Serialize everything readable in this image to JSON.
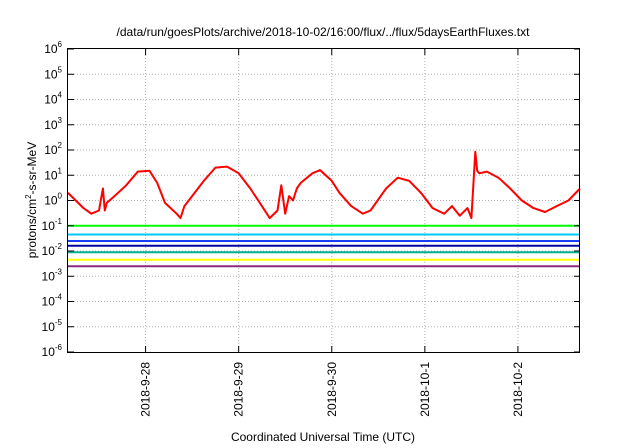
{
  "chart_data": {
    "type": "line",
    "title": "/data/run/goesPlots/archive/2018-10-02/16:00/flux/../flux/5daysEarthFluxes.txt",
    "xlabel": "Coordinated Universal Time (UTC)",
    "ylabel": "protons/cm2-s-sr-MeV",
    "ylabel_parts": {
      "base": "protons/cm",
      "sup": "2",
      "rest": "-s-sr-MeV"
    },
    "y_scale": "log",
    "ylim": [
      1e-06,
      1000000.0
    ],
    "y_ticks": [
      {
        "base": "10",
        "exp": "-6",
        "value": 1e-06
      },
      {
        "base": "10",
        "exp": "-5",
        "value": 1e-05
      },
      {
        "base": "10",
        "exp": "-4",
        "value": 0.0001
      },
      {
        "base": "10",
        "exp": "-3",
        "value": 0.001
      },
      {
        "base": "10",
        "exp": "-2",
        "value": 0.01
      },
      {
        "base": "10",
        "exp": "-1",
        "value": 0.1
      },
      {
        "base": "10",
        "exp": "0",
        "value": 1
      },
      {
        "base": "10",
        "exp": "1",
        "value": 10
      },
      {
        "base": "10",
        "exp": "2",
        "value": 100
      },
      {
        "base": "10",
        "exp": "3",
        "value": 1000
      },
      {
        "base": "10",
        "exp": "4",
        "value": 10000
      },
      {
        "base": "10",
        "exp": "5",
        "value": 100000
      },
      {
        "base": "10",
        "exp": "6",
        "value": 1000000
      }
    ],
    "x_range": [
      "2018-09-27T04:00",
      "2018-10-02T16:00"
    ],
    "x_ticks": [
      {
        "label": "2018-9-28",
        "value": "2018-09-28T00:00"
      },
      {
        "label": "2018-9-29",
        "value": "2018-09-29T00:00"
      },
      {
        "label": "2018-9-30",
        "value": "2018-09-30T00:00"
      },
      {
        "label": "2018-10-1",
        "value": "2018-10-01T00:00"
      },
      {
        "label": "2018-10-2",
        "value": "2018-10-02T00:00"
      }
    ],
    "grid": true,
    "legend": "none",
    "series": [
      {
        "color": "#ff0000",
        "x": [
          "2018-09-27T04:00",
          "2018-09-27T08:00",
          "2018-09-27T10:00",
          "2018-09-27T12:00",
          "2018-09-27T13:00",
          "2018-09-27T13:30",
          "2018-09-27T14:00",
          "2018-09-27T16:00",
          "2018-09-27T19:00",
          "2018-09-27T22:00",
          "2018-09-28T01:00",
          "2018-09-28T03:00",
          "2018-09-28T05:00",
          "2018-09-28T08:00",
          "2018-09-28T09:00",
          "2018-09-28T10:00",
          "2018-09-28T12:00",
          "2018-09-28T15:00",
          "2018-09-28T18:00",
          "2018-09-28T21:00",
          "2018-09-29T00:00",
          "2018-09-29T03:00",
          "2018-09-29T06:00",
          "2018-09-29T08:00",
          "2018-09-29T10:00",
          "2018-09-29T11:00",
          "2018-09-29T12:00",
          "2018-09-29T13:00",
          "2018-09-29T14:00",
          "2018-09-29T15:00",
          "2018-09-29T16:00",
          "2018-09-29T19:00",
          "2018-09-29T21:00",
          "2018-09-30T00:00",
          "2018-09-30T02:00",
          "2018-09-30T05:00",
          "2018-09-30T08:00",
          "2018-09-30T10:00",
          "2018-09-30T14:00",
          "2018-09-30T17:00",
          "2018-09-30T20:00",
          "2018-09-30T23:00",
          "2018-10-01T02:00",
          "2018-10-01T05:00",
          "2018-10-01T07:00",
          "2018-10-01T09:00",
          "2018-10-01T11:00",
          "2018-10-01T12:00",
          "2018-10-01T13:00",
          "2018-10-01T13:30",
          "2018-10-01T14:00",
          "2018-10-01T16:00",
          "2018-10-01T19:00",
          "2018-10-01T22:00",
          "2018-10-02T01:00",
          "2018-10-02T04:00",
          "2018-10-02T07:00",
          "2018-10-02T10:00",
          "2018-10-02T13:00",
          "2018-10-02T16:00"
        ],
        "values": [
          2.0,
          0.5,
          0.3,
          0.4,
          3.0,
          0.4,
          0.8,
          1.5,
          4.0,
          14,
          15,
          5.0,
          0.8,
          0.3,
          0.2,
          0.6,
          1.5,
          6.0,
          20,
          22,
          12,
          3.0,
          0.6,
          0.2,
          0.4,
          4.0,
          0.3,
          1.5,
          1.0,
          3.0,
          5.0,
          12,
          16,
          6.0,
          2.0,
          0.6,
          0.3,
          0.4,
          3.0,
          8.0,
          6.0,
          2.0,
          0.5,
          0.3,
          0.6,
          0.25,
          0.5,
          0.2,
          85,
          15,
          12,
          14,
          8.0,
          3.0,
          1.0,
          0.5,
          0.35,
          0.6,
          1.0,
          3.0
        ]
      },
      {
        "color": "#00ff00",
        "x": [
          "2018-09-27T04:00",
          "2018-10-02T16:00"
        ],
        "values": [
          0.1,
          0.1
        ]
      },
      {
        "color": "#00c8ff",
        "x": [
          "2018-09-27T04:00",
          "2018-10-02T16:00"
        ],
        "values": [
          0.045,
          0.045
        ]
      },
      {
        "color": "#1a3cff",
        "x": [
          "2018-09-27T04:00",
          "2018-10-02T16:00"
        ],
        "values": [
          0.025,
          0.025
        ]
      },
      {
        "color": "#0000a0",
        "x": [
          "2018-09-27T04:00",
          "2018-10-02T16:00"
        ],
        "values": [
          0.016,
          0.016
        ]
      },
      {
        "color": "#00b090",
        "x": [
          "2018-09-27T04:00",
          "2018-10-02T16:00"
        ],
        "values": [
          0.009,
          0.009
        ]
      },
      {
        "color": "#ffff00",
        "x": [
          "2018-09-27T04:00",
          "2018-10-02T16:00"
        ],
        "values": [
          0.0045,
          0.0045
        ]
      },
      {
        "color": "#8b2a7a",
        "x": [
          "2018-09-27T04:00",
          "2018-10-02T16:00"
        ],
        "values": [
          0.0025,
          0.0025
        ]
      }
    ]
  }
}
